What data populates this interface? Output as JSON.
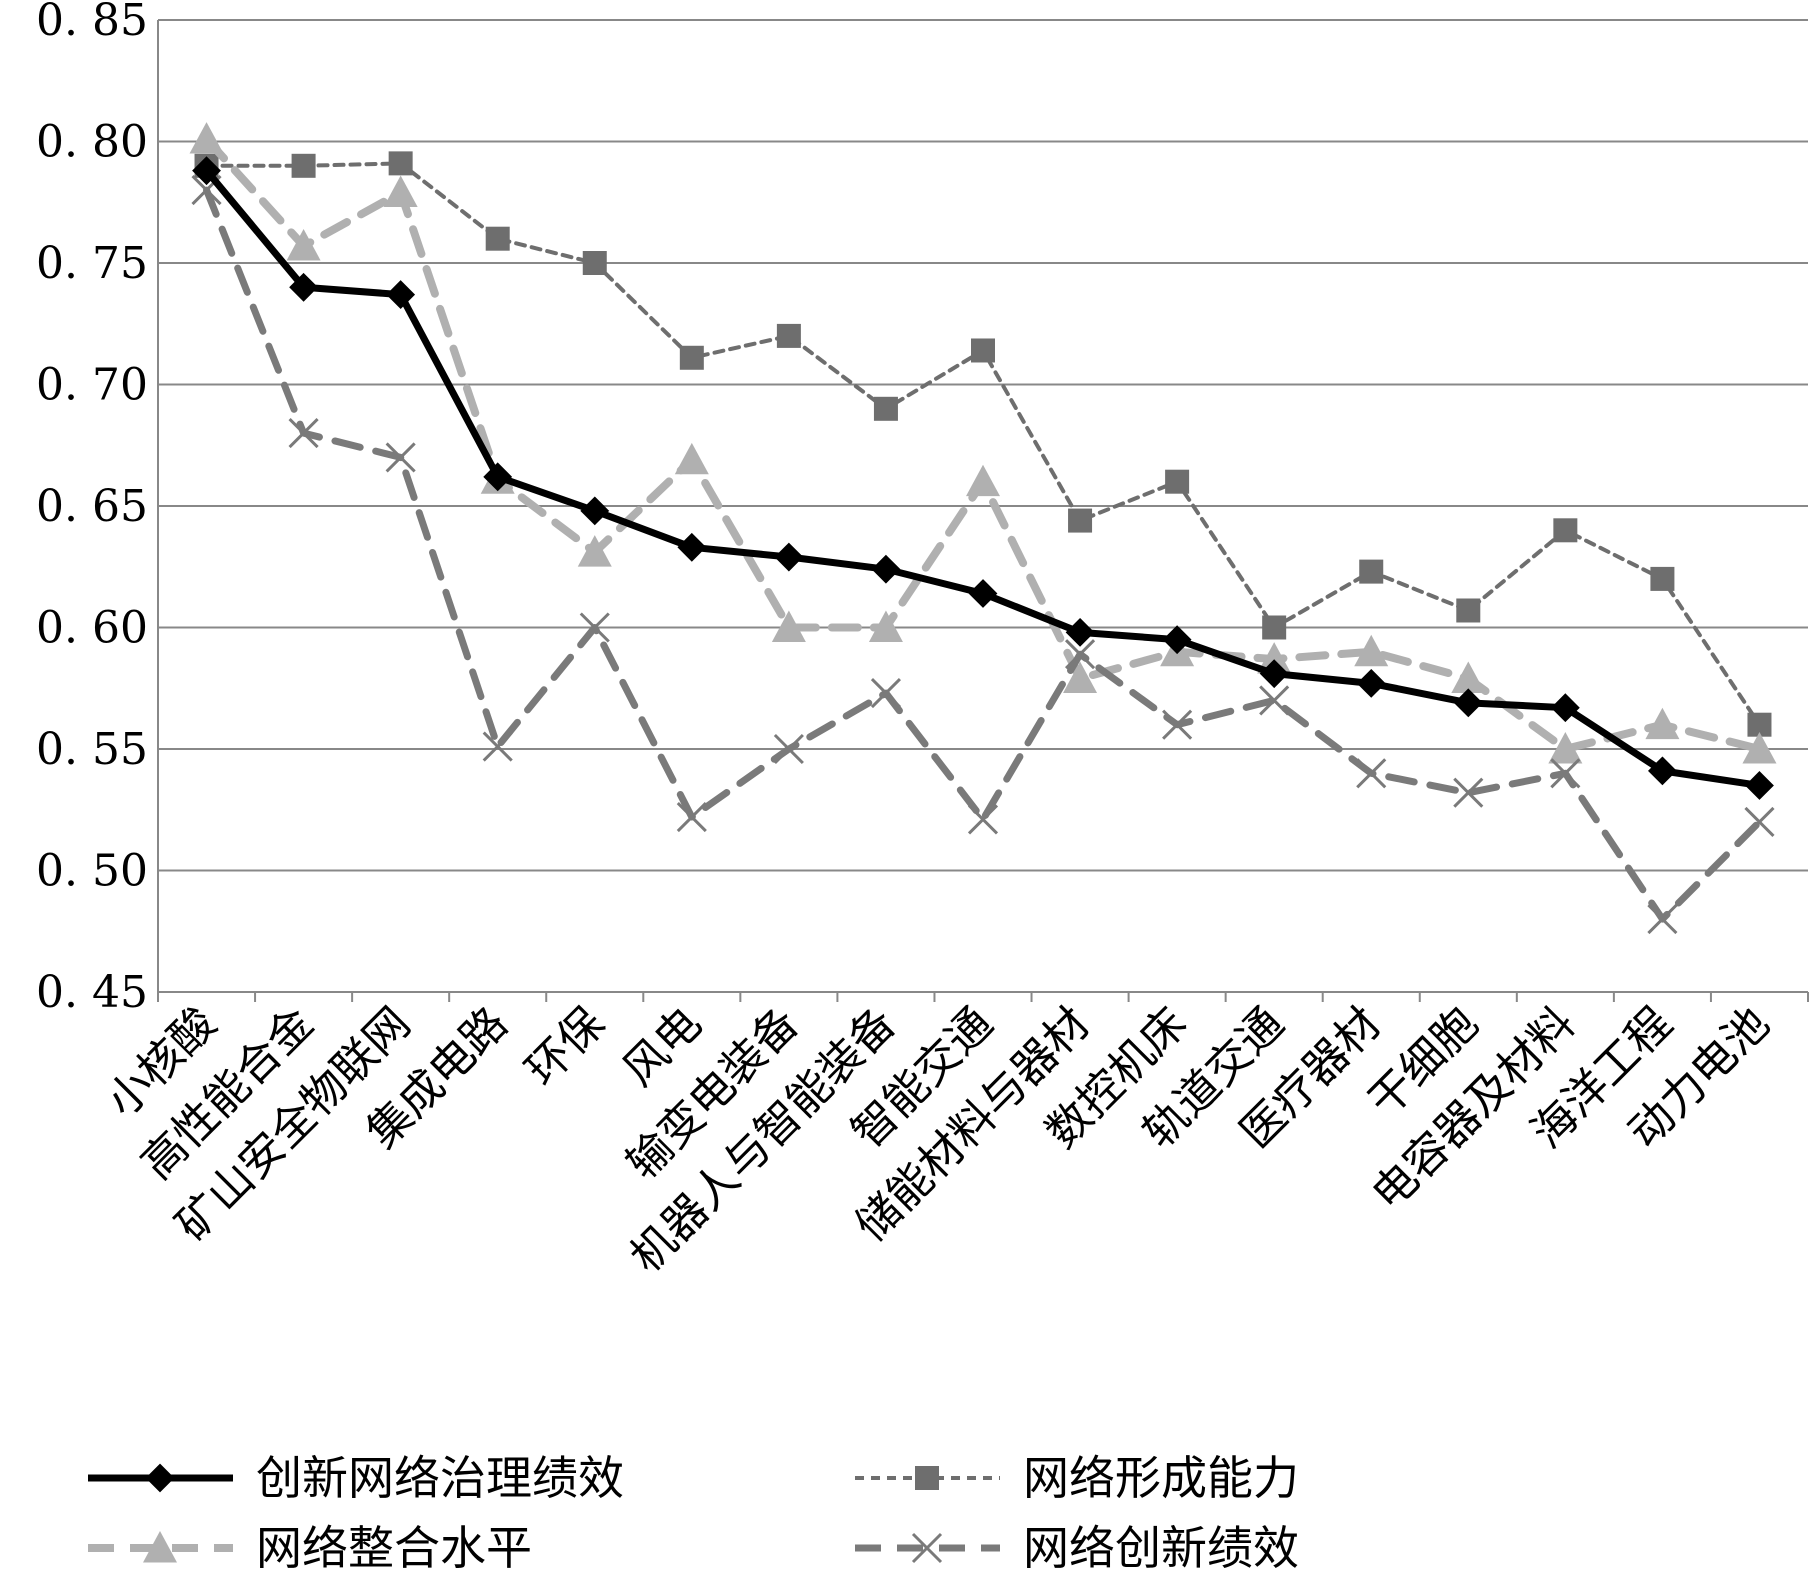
{
  "chart_data": {
    "type": "line",
    "categories": [
      "小核酸",
      "高性能合金",
      "矿山安全物联网",
      "集成电路",
      "环保",
      "风电",
      "输变电装备",
      "机器人与智能装备",
      "智能交通",
      "储能材料与器材",
      "数控机床",
      "轨道交通",
      "医疗器材",
      "干细胞",
      "电容器及材料",
      "海洋工程",
      "动力电池"
    ],
    "ylim": [
      0.45,
      0.85
    ],
    "yticks": [
      0.45,
      0.5,
      0.55,
      0.6,
      0.65,
      0.7,
      0.75,
      0.8,
      0.85
    ],
    "ytick_labels": [
      "0. 45",
      "0. 50",
      "0. 55",
      "0. 60",
      "0. 65",
      "0. 70",
      "0. 75",
      "0. 80",
      "0. 85"
    ],
    "grid": true,
    "legend_position": "bottom",
    "series": [
      {
        "name": "创新网络治理绩效",
        "color": "#000000",
        "marker": "diamond",
        "dash": "solid",
        "values": [
          0.788,
          0.74,
          0.737,
          0.662,
          0.648,
          0.633,
          0.629,
          0.624,
          0.614,
          0.598,
          0.595,
          0.581,
          0.577,
          0.569,
          0.567,
          0.541,
          0.535
        ]
      },
      {
        "name": "网络形成能力",
        "color": "#6e6e6e",
        "marker": "square",
        "dash": "short",
        "values": [
          0.79,
          0.79,
          0.791,
          0.76,
          0.75,
          0.711,
          0.72,
          0.69,
          0.714,
          0.644,
          0.66,
          0.6,
          0.623,
          0.607,
          0.64,
          0.62,
          0.56
        ]
      },
      {
        "name": "网络整合水平",
        "color": "#b0b0b0",
        "marker": "triangle",
        "dash": "long",
        "values": [
          0.801,
          0.757,
          0.779,
          0.661,
          0.631,
          0.669,
          0.6,
          0.6,
          0.66,
          0.579,
          0.59,
          0.587,
          0.59,
          0.579,
          0.55,
          0.56,
          0.55
        ]
      },
      {
        "name": "网络创新绩效",
        "color": "#7a7a7a",
        "marker": "x",
        "dash": "long",
        "values": [
          0.78,
          0.68,
          0.67,
          0.551,
          0.6,
          0.522,
          0.55,
          0.573,
          0.521,
          0.589,
          0.56,
          0.57,
          0.54,
          0.532,
          0.54,
          0.48,
          0.52
        ]
      }
    ]
  }
}
